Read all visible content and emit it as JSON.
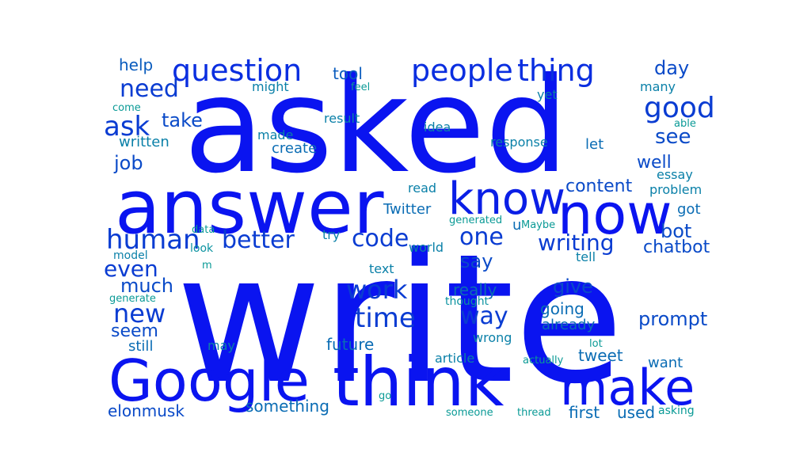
{
  "words": [
    {
      "text": "write",
      "color": "#0a14f0"
    },
    {
      "text": "asked",
      "color": "#0a14f0"
    },
    {
      "text": "answer",
      "color": "#0a14f0"
    },
    {
      "text": "now",
      "color": "#0a14f0"
    },
    {
      "text": "know",
      "color": "#0a1ee6"
    },
    {
      "text": "Google",
      "color": "#0a14f0"
    },
    {
      "text": "think",
      "color": "#0a14f0"
    },
    {
      "text": "make",
      "color": "#0a14f0"
    },
    {
      "text": "people",
      "color": "#0a2ee0"
    },
    {
      "text": "thing",
      "color": "#0a2ee0"
    },
    {
      "text": "question",
      "color": "#0a2ee0"
    },
    {
      "text": "need",
      "color": "#0a3cd2"
    },
    {
      "text": "ask",
      "color": "#0a3cd2"
    },
    {
      "text": "good",
      "color": "#0a3cd2"
    },
    {
      "text": "human",
      "color": "#0a3cd2"
    },
    {
      "text": "better",
      "color": "#0a3cd2"
    },
    {
      "text": "code",
      "color": "#0a3cd2"
    },
    {
      "text": "one",
      "color": "#0a3cd2"
    },
    {
      "text": "writing",
      "color": "#0a3cd2"
    },
    {
      "text": "work",
      "color": "#0a3cd2"
    },
    {
      "text": "time",
      "color": "#0a3cd2"
    },
    {
      "text": "way",
      "color": "#0a3cd2"
    },
    {
      "text": "new",
      "color": "#0a3cd2"
    },
    {
      "text": "even",
      "color": "#0a3cd2"
    },
    {
      "text": "content",
      "color": "#0a4ac8"
    },
    {
      "text": "elonmusk",
      "color": "#0a4ac8"
    },
    {
      "text": "say",
      "color": "#0a4ac8"
    },
    {
      "text": "give",
      "color": "#0a4ac8"
    },
    {
      "text": "prompt",
      "color": "#0a4ac8"
    },
    {
      "text": "bot",
      "color": "#0a4ac8"
    },
    {
      "text": "chatbot",
      "color": "#0a4ac8"
    },
    {
      "text": "see",
      "color": "#0a4ac8"
    },
    {
      "text": "well",
      "color": "#0a4ac8"
    },
    {
      "text": "day",
      "color": "#0a4ac8"
    },
    {
      "text": "take",
      "color": "#0a4ac8"
    },
    {
      "text": "job",
      "color": "#0a4ac8"
    },
    {
      "text": "much",
      "color": "#0a4ac8"
    },
    {
      "text": "seem",
      "color": "#0a4ac8"
    },
    {
      "text": "help",
      "color": "#0a5cbe"
    },
    {
      "text": "tool",
      "color": "#0a5cbe"
    },
    {
      "text": "create",
      "color": "#0a6cb4"
    },
    {
      "text": "Twitter",
      "color": "#0a6cb4"
    },
    {
      "text": "u",
      "color": "#0a6cb4"
    },
    {
      "text": "let",
      "color": "#0a6cb4"
    },
    {
      "text": "tweet",
      "color": "#0a6cb4"
    },
    {
      "text": "going",
      "color": "#0a6cb4"
    },
    {
      "text": "already",
      "color": "#0a6cb4"
    },
    {
      "text": "something",
      "color": "#0a6cb4"
    },
    {
      "text": "future",
      "color": "#0a6cb4"
    },
    {
      "text": "still",
      "color": "#0a6cb4"
    },
    {
      "text": "really",
      "color": "#0a6cb4"
    },
    {
      "text": "first",
      "color": "#0a6cb4"
    },
    {
      "text": "used",
      "color": "#0a6cb4"
    },
    {
      "text": "got",
      "color": "#0a6cb4"
    },
    {
      "text": "want",
      "color": "#0a6cb4"
    },
    {
      "text": "written",
      "color": "#0a80a8"
    },
    {
      "text": "made",
      "color": "#0a80a8"
    },
    {
      "text": "result",
      "color": "#0a80a8"
    },
    {
      "text": "idea",
      "color": "#0a80a8"
    },
    {
      "text": "response",
      "color": "#0a80a8"
    },
    {
      "text": "read",
      "color": "#0a80a8"
    },
    {
      "text": "essay",
      "color": "#0a80a8"
    },
    {
      "text": "problem",
      "color": "#0a80a8"
    },
    {
      "text": "might",
      "color": "#0a80a8"
    },
    {
      "text": "yet",
      "color": "#0a80a8"
    },
    {
      "text": "many",
      "color": "#0a80a8"
    },
    {
      "text": "try",
      "color": "#0a80a8"
    },
    {
      "text": "world",
      "color": "#0a80a8"
    },
    {
      "text": "text",
      "color": "#0a80a8"
    },
    {
      "text": "tell",
      "color": "#0a80a8"
    },
    {
      "text": "model",
      "color": "#0a80a8"
    },
    {
      "text": "wrong",
      "color": "#0a80a8"
    },
    {
      "text": "article",
      "color": "#0a80a8"
    },
    {
      "text": "may",
      "color": "#0a80a8"
    },
    {
      "text": "thought",
      "color": "#0a92a0"
    },
    {
      "text": "look",
      "color": "#0a92a0"
    },
    {
      "text": "data",
      "color": "#0a9a96"
    },
    {
      "text": "generated",
      "color": "#0a9a96"
    },
    {
      "text": "Maybe",
      "color": "#0a9a96"
    },
    {
      "text": "generate",
      "color": "#0a9a96"
    },
    {
      "text": "feel",
      "color": "#0a9a96"
    },
    {
      "text": "come",
      "color": "#0a9a96"
    },
    {
      "text": "able",
      "color": "#0a9a96"
    },
    {
      "text": "m",
      "color": "#0a9a96"
    },
    {
      "text": "lot",
      "color": "#0a9a96"
    },
    {
      "text": "actually",
      "color": "#0a9a96"
    },
    {
      "text": "go",
      "color": "#0a9a96"
    },
    {
      "text": "someone",
      "color": "#0a9a96"
    },
    {
      "text": "thread",
      "color": "#0a9a96"
    },
    {
      "text": "asking",
      "color": "#0a9a96"
    }
  ]
}
